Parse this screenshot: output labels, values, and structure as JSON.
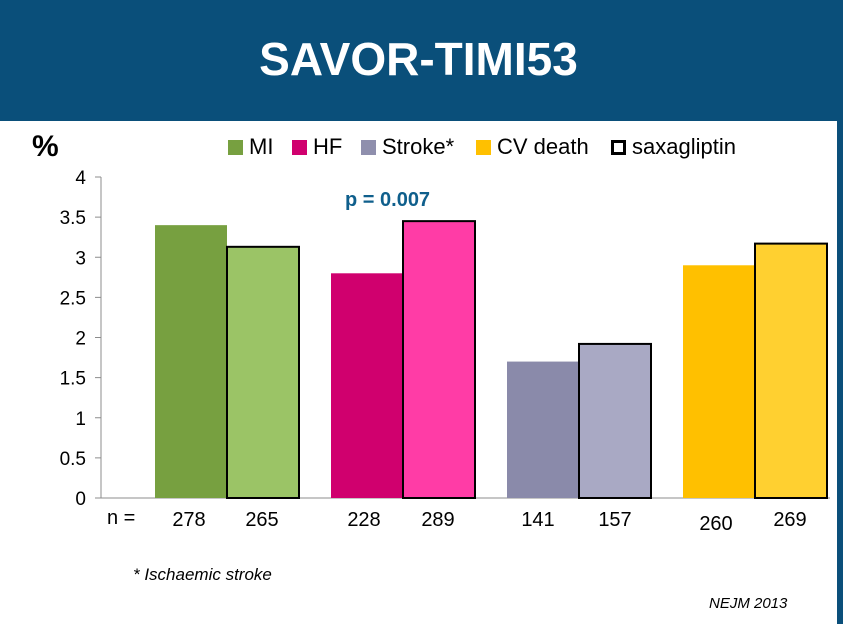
{
  "header": {
    "title": "SAVOR-TIMI53"
  },
  "chart_data": {
    "type": "bar",
    "ylabel": "%",
    "ylim": [
      0,
      4
    ],
    "yticks": [
      "0",
      "0.5",
      "1",
      "1.5",
      "2",
      "2.5",
      "3",
      "3.5",
      "4"
    ],
    "grid": false,
    "legend_position": "top",
    "legend": [
      {
        "label": "MI",
        "color": "#77a040",
        "outline": false
      },
      {
        "label": "HF",
        "color": "#d0006e",
        "outline": false
      },
      {
        "label": "Stroke*",
        "color": "#8f8fad",
        "outline": false
      },
      {
        "label": "CV death",
        "color": "#ffc000",
        "outline": false
      },
      {
        "label": "saxagliptin",
        "color": "#ffffff",
        "outline": true
      }
    ],
    "groups": [
      {
        "category": "MI",
        "placebo": {
          "value": 3.4,
          "n": "278",
          "color": "#77a040"
        },
        "saxagliptin": {
          "value": 3.13,
          "n": "265",
          "color": "#9bc466"
        }
      },
      {
        "category": "HF",
        "placebo": {
          "value": 2.8,
          "n": "228",
          "color": "#d0006e"
        },
        "saxagliptin": {
          "value": 3.45,
          "n": "289",
          "color": "#ff3ca6"
        }
      },
      {
        "category": "Stroke*",
        "placebo": {
          "value": 1.7,
          "n": "141",
          "color": "#8a8aaa"
        },
        "saxagliptin": {
          "value": 1.92,
          "n": "157",
          "color": "#a9a9c4"
        }
      },
      {
        "category": "CV death",
        "placebo": {
          "value": 2.9,
          "n": "260",
          "color": "#ffc000"
        },
        "saxagliptin": {
          "value": 3.17,
          "n": "269",
          "color": "#ffd030"
        }
      }
    ],
    "annotation": "p = 0.007",
    "n_label": "n ="
  },
  "footnote": "* Ischaemic stroke",
  "source": "NEJM 2013"
}
